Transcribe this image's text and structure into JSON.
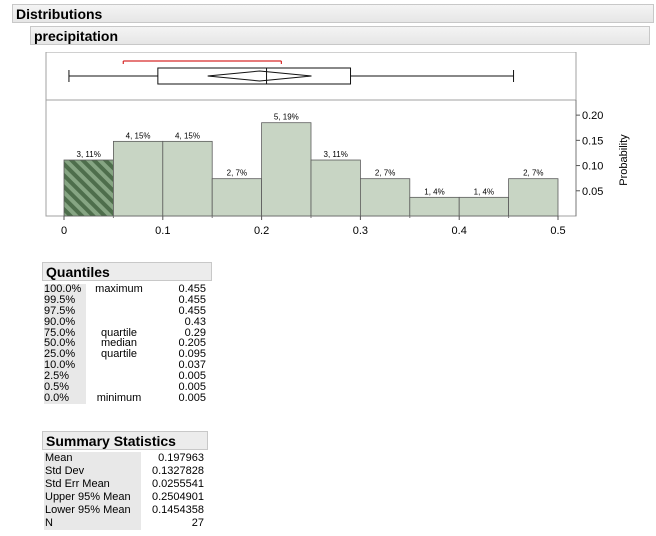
{
  "report": {
    "title": "Distributions",
    "variable": "precipitation"
  },
  "chart_data": {
    "type": "histogram",
    "bin_width": 0.05,
    "bins": [
      {
        "start": 0.0,
        "end": 0.05,
        "label": "3, 11%",
        "count": 3,
        "pct": 0.111,
        "highlight": true
      },
      {
        "start": 0.05,
        "end": 0.1,
        "label": "4, 15%",
        "count": 4,
        "pct": 0.148
      },
      {
        "start": 0.1,
        "end": 0.15,
        "label": "4, 15%",
        "count": 4,
        "pct": 0.148
      },
      {
        "start": 0.15,
        "end": 0.2,
        "label": "2, 7%",
        "count": 2,
        "pct": 0.074
      },
      {
        "start": 0.2,
        "end": 0.25,
        "label": "5, 19%",
        "count": 5,
        "pct": 0.185
      },
      {
        "start": 0.25,
        "end": 0.3,
        "label": "3, 11%",
        "count": 3,
        "pct": 0.111
      },
      {
        "start": 0.3,
        "end": 0.35,
        "label": "2, 7%",
        "count": 2,
        "pct": 0.074
      },
      {
        "start": 0.35,
        "end": 0.4,
        "label": "1, 4%",
        "count": 1,
        "pct": 0.037
      },
      {
        "start": 0.4,
        "end": 0.45,
        "label": "1, 4%",
        "count": 1,
        "pct": 0.037
      },
      {
        "start": 0.45,
        "end": 0.5,
        "label": "2, 7%",
        "count": 2,
        "pct": 0.074
      }
    ],
    "x_ticks": [
      "0",
      "0.1",
      "0.2",
      "0.3",
      "0.4",
      "0.5"
    ],
    "x_tick_values": [
      0,
      0.1,
      0.2,
      0.3,
      0.4,
      0.5
    ],
    "xlim": [
      0,
      0.5
    ],
    "ylim": [
      0,
      0.23
    ],
    "right_axis": {
      "label": "Probability",
      "ticks": [
        "0.20",
        "0.15",
        "0.10",
        "0.05"
      ],
      "tick_values": [
        0.2,
        0.15,
        0.1,
        0.05
      ]
    },
    "boxplot": {
      "whisker_min": 0.005,
      "q1": 0.095,
      "median": 0.205,
      "q3": 0.29,
      "whisker_max": 0.455,
      "mean": 0.197963,
      "ci_lower": 0.1454358,
      "ci_upper": 0.2504901,
      "shortest_half": [
        0.06,
        0.22
      ]
    },
    "colors": {
      "bar_fill": "#c8d5c4",
      "bar_stroke": "#5c5c5c",
      "highlight_fill": "#4e6e4c",
      "highlight_stripe": "#86a583",
      "shortest_half": "#d62b2b"
    }
  },
  "quantiles": {
    "title": "Quantiles",
    "rows": [
      {
        "pct": "100.0%",
        "label": "maximum",
        "value": "0.455"
      },
      {
        "pct": "99.5%",
        "label": "",
        "value": "0.455"
      },
      {
        "pct": "97.5%",
        "label": "",
        "value": "0.455"
      },
      {
        "pct": "90.0%",
        "label": "",
        "value": "0.43"
      },
      {
        "pct": "75.0%",
        "label": "quartile",
        "value": "0.29"
      },
      {
        "pct": "50.0%",
        "label": "median",
        "value": "0.205"
      },
      {
        "pct": "25.0%",
        "label": "quartile",
        "value": "0.095"
      },
      {
        "pct": "10.0%",
        "label": "",
        "value": "0.037"
      },
      {
        "pct": "2.5%",
        "label": "",
        "value": "0.005"
      },
      {
        "pct": "0.5%",
        "label": "",
        "value": "0.005"
      },
      {
        "pct": "0.0%",
        "label": "minimum",
        "value": "0.005"
      }
    ]
  },
  "summary": {
    "title": "Summary Statistics",
    "rows": [
      {
        "label": "Mean",
        "value": "0.197963"
      },
      {
        "label": "Std Dev",
        "value": "0.1327828"
      },
      {
        "label": "Std Err Mean",
        "value": "0.0255541"
      },
      {
        "label": "Upper 95% Mean",
        "value": "0.2504901"
      },
      {
        "label": "Lower 95% Mean",
        "value": "0.1454358"
      },
      {
        "label": "N",
        "value": "27"
      }
    ]
  }
}
